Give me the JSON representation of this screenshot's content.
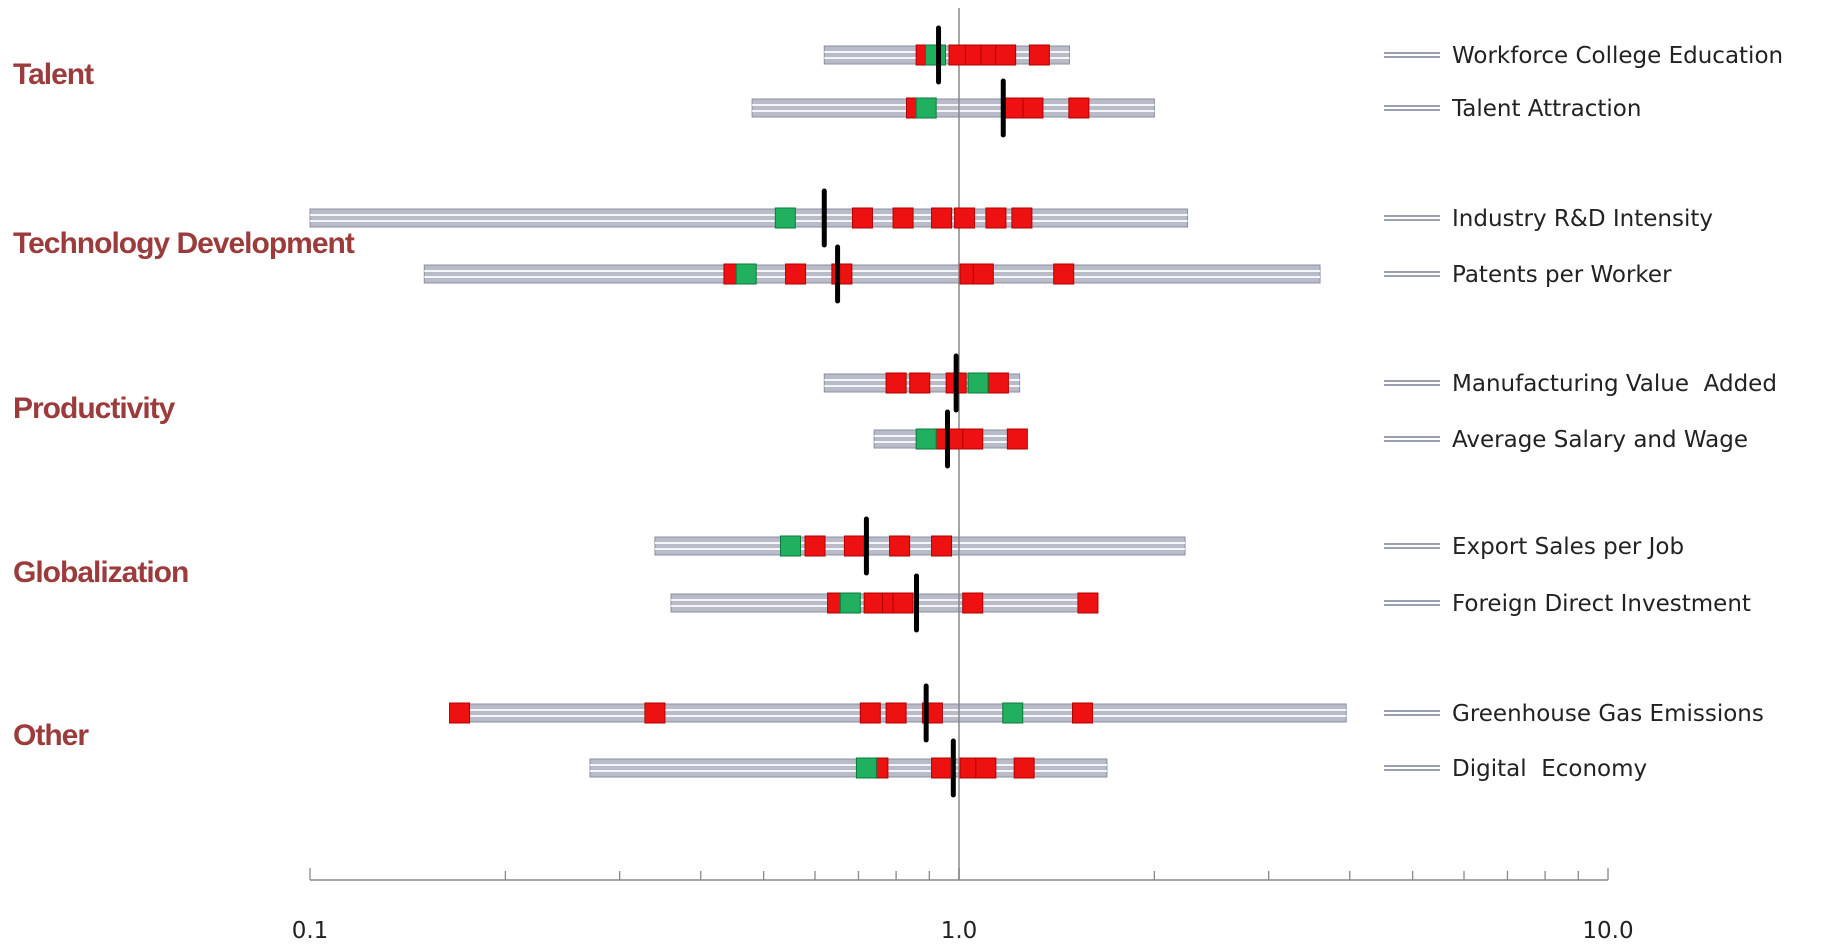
{
  "chart_data": {
    "type": "scatter",
    "title": "",
    "xlabel": "",
    "ylabel": "",
    "x_scale": "log",
    "xlim": [
      0.1,
      10.0
    ],
    "x_tick_labels": [
      "0.1",
      "1.0",
      "10.0"
    ],
    "x_tick_values": [
      0.1,
      1.0,
      10.0
    ],
    "reference_line_x": 1.0,
    "groups": [
      {
        "name": "Talent",
        "metrics": [
          "Workforce College Education",
          "Talent Attraction"
        ]
      },
      {
        "name": "Technology Development",
        "metrics": [
          "Industry R&D Intensity",
          "Patents per Worker"
        ]
      },
      {
        "name": "Productivity",
        "metrics": [
          "Manufacturing Value  Added",
          "Average Salary and Wage"
        ]
      },
      {
        "name": "Globalization",
        "metrics": [
          "Export Sales per Job",
          "Foreign Direct Investment"
        ]
      },
      {
        "name": "Other",
        "metrics": [
          "Greenhouse Gas Emissions",
          "Digital  Economy"
        ]
      }
    ],
    "colors": {
      "range_bar": "#b9bcc8",
      "range_bar_edge": "#8a8ea0",
      "red_marker": "#ee1111",
      "green_marker": "#20b060",
      "black_marker": "#000000",
      "group_label": "#9b3b3b"
    },
    "series": [
      {
        "name": "Workforce College Education",
        "range": [
          0.62,
          1.48
        ],
        "red": [
          0.89,
          1.0,
          1.06,
          1.12,
          1.18,
          1.33
        ],
        "green": [
          0.92
        ],
        "black": 0.93
      },
      {
        "name": "Talent Attraction",
        "range": [
          0.48,
          2.0
        ],
        "red": [
          0.86,
          1.22,
          1.3,
          1.53
        ],
        "green": [
          0.89
        ],
        "black": 1.17
      },
      {
        "name": "Industry R&D Intensity",
        "range": [
          0.1,
          2.25
        ],
        "red": [
          0.71,
          0.82,
          0.94,
          1.02,
          1.14,
          1.25
        ],
        "green": [
          0.54
        ],
        "black": 0.62
      },
      {
        "name": "Patents per Worker",
        "range": [
          0.15,
          3.6
        ],
        "red": [
          0.45,
          0.56,
          0.66,
          1.04,
          1.09,
          1.45
        ],
        "green": [
          0.47
        ],
        "black": 0.65
      },
      {
        "name": "Manufacturing Value  Added",
        "range": [
          0.62,
          1.24
        ],
        "red": [
          0.8,
          0.87,
          0.99,
          1.15
        ],
        "green": [
          1.07
        ],
        "black": 0.99
      },
      {
        "name": "Average Salary and Wage",
        "range": [
          0.74,
          1.24
        ],
        "red": [
          0.95,
          1.0,
          1.05,
          1.23
        ],
        "green": [
          0.89
        ],
        "black": 0.96
      },
      {
        "name": "Export Sales per Job",
        "range": [
          0.34,
          2.23
        ],
        "red": [
          0.6,
          0.69,
          0.81,
          0.94
        ],
        "green": [
          0.55
        ],
        "black": 0.72
      },
      {
        "name": "Foreign Direct Investment",
        "range": [
          0.36,
          1.58
        ],
        "red": [
          0.65,
          0.74,
          0.79,
          0.82,
          1.05,
          1.58
        ],
        "green": [
          0.68
        ],
        "black": 0.86
      },
      {
        "name": "Greenhouse Gas Emissions",
        "range": [
          0.17,
          3.95
        ],
        "red": [
          0.17,
          0.34,
          0.73,
          0.8,
          0.91,
          1.55
        ],
        "green": [
          1.21
        ],
        "black": 0.89
      },
      {
        "name": "Digital  Economy",
        "range": [
          0.27,
          1.69
        ],
        "red": [
          0.75,
          0.94,
          1.04,
          1.1,
          1.26
        ],
        "green": [
          0.72
        ],
        "black": 0.98
      }
    ]
  }
}
